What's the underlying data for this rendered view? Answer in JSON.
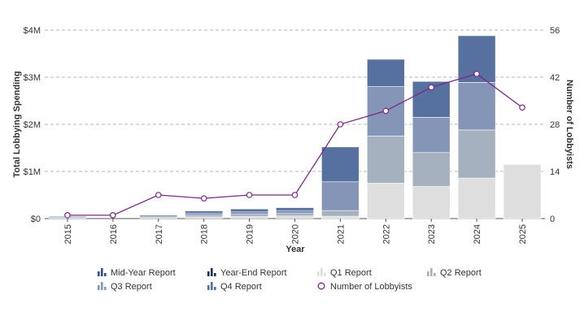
{
  "chart_data": {
    "type": "bar",
    "stacked": true,
    "categories": [
      "2015",
      "2016",
      "2017",
      "2018",
      "2019",
      "2020",
      "2021",
      "2022",
      "2023",
      "2024",
      "2025"
    ],
    "xlabel": "Year",
    "ylabel": "Total Lobbying Spending",
    "y2label": "Number of Lobbyists",
    "ylim": [
      0,
      4000000
    ],
    "y2lim": [
      0,
      56
    ],
    "y_ticks": [
      "$0",
      "$1M",
      "$2M",
      "$3M",
      "$4M"
    ],
    "y2_ticks": [
      "0",
      "14",
      "28",
      "42",
      "56"
    ],
    "grid": true,
    "series": [
      {
        "name": "Mid-Year Report",
        "color": "#2f4f8f",
        "values": [
          0,
          0,
          0,
          0,
          0,
          0,
          0,
          0,
          0,
          0,
          0
        ]
      },
      {
        "name": "Year-End Report",
        "color": "#1f2f55",
        "values": [
          0,
          0,
          0,
          0,
          0,
          0,
          0,
          0,
          0,
          0,
          0
        ]
      },
      {
        "name": "Q1 Report",
        "color": "#dedede",
        "values": [
          0,
          0,
          0,
          0,
          0,
          0,
          50000,
          750000,
          680000,
          860000,
          1150000
        ]
      },
      {
        "name": "Q2 Report",
        "color": "#a5b1bf",
        "values": [
          0,
          0,
          0,
          0,
          0,
          0,
          120000,
          1000000,
          720000,
          1020000,
          0
        ]
      },
      {
        "name": "Q3 Report",
        "color": "#8595b7",
        "values": [
          0,
          0,
          0,
          0,
          0,
          0,
          610000,
          1050000,
          750000,
          1010000,
          0
        ]
      },
      {
        "name": "Q4 Report",
        "color": "#56709f",
        "values": [
          0,
          0,
          0,
          0,
          0,
          0,
          740000,
          580000,
          760000,
          990000,
          0
        ]
      }
    ],
    "small_stacks": {
      "values": [
        50000,
        0,
        70000,
        160000,
        200000,
        230000,
        0,
        0,
        0,
        0,
        0
      ],
      "layer_colors": [
        "#dedede",
        "#a5b1bf",
        "#8595b7",
        "#56709f"
      ]
    },
    "line_series": {
      "name": "Number of Lobbyists",
      "color": "#7a2a86",
      "axis": "right",
      "values": [
        1,
        1,
        7,
        6,
        7,
        7,
        28,
        32,
        39,
        43,
        33
      ]
    },
    "legend": [
      {
        "label": "Mid-Year Report",
        "icon": "bar-icon",
        "color": "#2f4f8f"
      },
      {
        "label": "Year-End Report",
        "icon": "bar-icon",
        "color": "#1f2f55"
      },
      {
        "label": "Q1 Report",
        "icon": "bar-icon",
        "color": "#dedede"
      },
      {
        "label": "Q2 Report",
        "icon": "bar-icon",
        "color": "#a5b1bf"
      },
      {
        "label": "Q3 Report",
        "icon": "bar-icon",
        "color": "#8595b7"
      },
      {
        "label": "Q4 Report",
        "icon": "bar-icon",
        "color": "#56709f"
      },
      {
        "label": "Number of Lobbyists",
        "icon": "line-marker-icon",
        "color": "#7a2a86"
      }
    ],
    "legend_position": "bottom"
  }
}
